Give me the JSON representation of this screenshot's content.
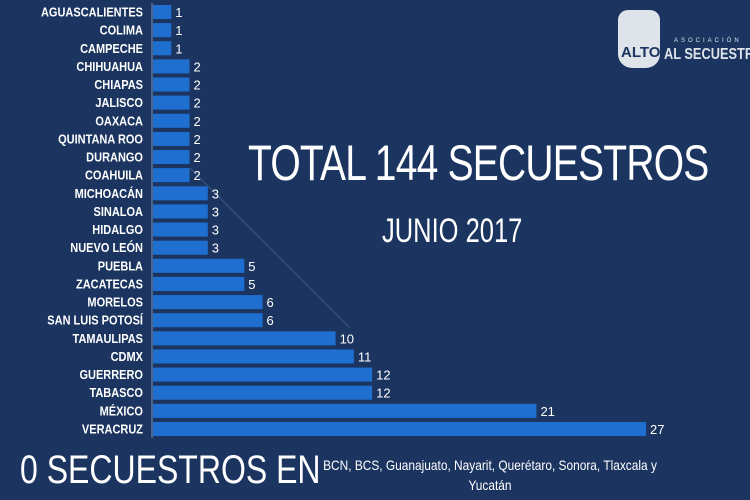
{
  "colors": {
    "background": "#1b3560",
    "bar": "#1f6fd1",
    "text": "#ffffff"
  },
  "header": {
    "title": "TOTAL 144 SECUESTROS",
    "subtitle": "JUNIO 2017"
  },
  "logo": {
    "top": "ASOCIACIÓN",
    "hand": "ALTO",
    "main": "AL SECUESTRO"
  },
  "footer": {
    "label": "0 SECUESTROS EN",
    "states": "BCN, BCS, Guanajuato, Nayarit, Querétaro, Sonora, Tlaxcala y Yucatán"
  },
  "chart_data": {
    "type": "bar",
    "orientation": "horizontal",
    "title": "TOTAL 144 SECUESTROS",
    "subtitle": "JUNIO 2017",
    "categories": [
      "AGUASCALIENTES",
      "COLIMA",
      "CAMPECHE",
      "CHIHUAHUA",
      "CHIAPAS",
      "JALISCO",
      "OAXACA",
      "QUINTANA ROO",
      "DURANGO",
      "COAHUILA",
      "MICHOACÁN",
      "SINALOA",
      "HIDALGO",
      "NUEVO LEÓN",
      "PUEBLA",
      "ZACATECAS",
      "MORELOS",
      "SAN LUIS POTOSÍ",
      "TAMAULIPAS",
      "CDMX",
      "GUERRERO",
      "TABASCO",
      "MÉXICO",
      "VERACRUZ"
    ],
    "values": [
      1,
      1,
      1,
      2,
      2,
      2,
      2,
      2,
      2,
      2,
      3,
      3,
      3,
      3,
      5,
      5,
      6,
      6,
      10,
      11,
      12,
      12,
      21,
      27
    ],
    "xlim": [
      0,
      27
    ],
    "grid": false,
    "data_labels": true
  }
}
